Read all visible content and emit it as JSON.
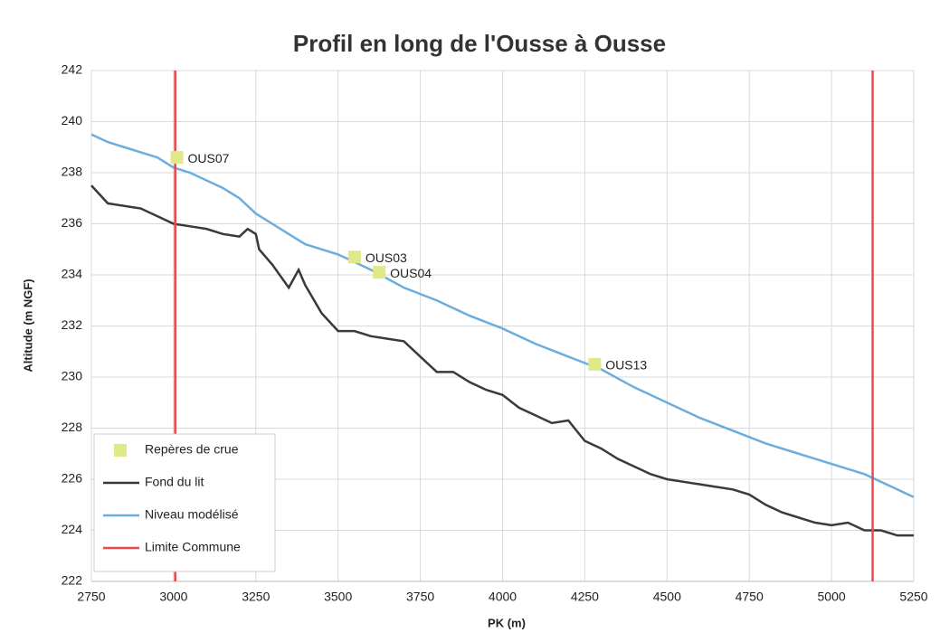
{
  "chart_data": {
    "type": "line",
    "title": "Profil en long de l'Ousse à Ousse",
    "xlabel": "PK (m)",
    "ylabel": "Altitude (m NGF)",
    "xlim": [
      2750,
      5250
    ],
    "xticks": [
      2750,
      3000,
      3250,
      3500,
      3750,
      4000,
      4250,
      4500,
      4750,
      5000,
      5250
    ],
    "ylim": [
      222,
      242
    ],
    "yticks": [
      222,
      224,
      226,
      228,
      230,
      232,
      234,
      236,
      238,
      240,
      242
    ],
    "grid": true,
    "legend": "lower left",
    "series": [
      {
        "name": "Repères de crue",
        "type": "scatter",
        "color": "#dfe98a",
        "x": [
          3010,
          3550,
          3625,
          4280
        ],
        "values": [
          238.6,
          234.7,
          234.1,
          230.5
        ],
        "labels": [
          "OUS07",
          "OUS03",
          "OUS04",
          "OUS13"
        ]
      },
      {
        "name": "Fond du lit",
        "type": "line",
        "color": "#3a3a3a",
        "x": [
          2750,
          2800,
          2850,
          2900,
          2950,
          3000,
          3050,
          3100,
          3150,
          3200,
          3225,
          3250,
          3260,
          3300,
          3350,
          3380,
          3400,
          3450,
          3500,
          3550,
          3600,
          3650,
          3700,
          3750,
          3800,
          3850,
          3900,
          3950,
          4000,
          4050,
          4100,
          4150,
          4200,
          4250,
          4300,
          4350,
          4400,
          4450,
          4500,
          4550,
          4600,
          4650,
          4700,
          4750,
          4800,
          4850,
          4900,
          4950,
          5000,
          5050,
          5100,
          5150,
          5200,
          5250
        ],
        "values": [
          237.5,
          236.8,
          236.7,
          236.6,
          236.3,
          236.0,
          235.9,
          235.8,
          235.6,
          235.5,
          235.8,
          235.6,
          235.0,
          234.4,
          233.5,
          234.2,
          233.6,
          232.5,
          231.8,
          231.8,
          231.6,
          231.5,
          231.4,
          230.8,
          230.2,
          230.2,
          229.8,
          229.5,
          229.3,
          228.8,
          228.5,
          228.2,
          228.3,
          227.5,
          227.2,
          226.8,
          226.5,
          226.2,
          226.0,
          225.9,
          225.8,
          225.7,
          225.6,
          225.4,
          225.0,
          224.7,
          224.5,
          224.3,
          224.2,
          224.3,
          224.0,
          224.0,
          223.8,
          223.8
        ]
      },
      {
        "name": "Niveau modélisé",
        "type": "line",
        "color": "#6aaee0",
        "x": [
          2750,
          2800,
          2850,
          2900,
          2950,
          3000,
          3050,
          3100,
          3150,
          3200,
          3250,
          3300,
          3350,
          3400,
          3500,
          3600,
          3700,
          3800,
          3900,
          4000,
          4100,
          4200,
          4300,
          4400,
          4500,
          4600,
          4700,
          4800,
          4900,
          5000,
          5100,
          5200,
          5250
        ],
        "values": [
          239.5,
          239.2,
          239.0,
          238.8,
          238.6,
          238.2,
          238.0,
          237.7,
          237.4,
          237.0,
          236.4,
          236.0,
          235.6,
          235.2,
          234.8,
          234.2,
          233.5,
          233.0,
          232.4,
          231.9,
          231.3,
          230.8,
          230.3,
          229.6,
          229.0,
          228.4,
          227.9,
          227.4,
          227.0,
          226.6,
          226.2,
          225.6,
          225.3
        ]
      },
      {
        "name": "Limite Commune",
        "type": "line",
        "color": "#f04848",
        "x": [
          3005,
          3005,
          null,
          5125,
          5125
        ],
        "values": [
          222,
          242,
          null,
          222,
          242
        ]
      }
    ]
  }
}
